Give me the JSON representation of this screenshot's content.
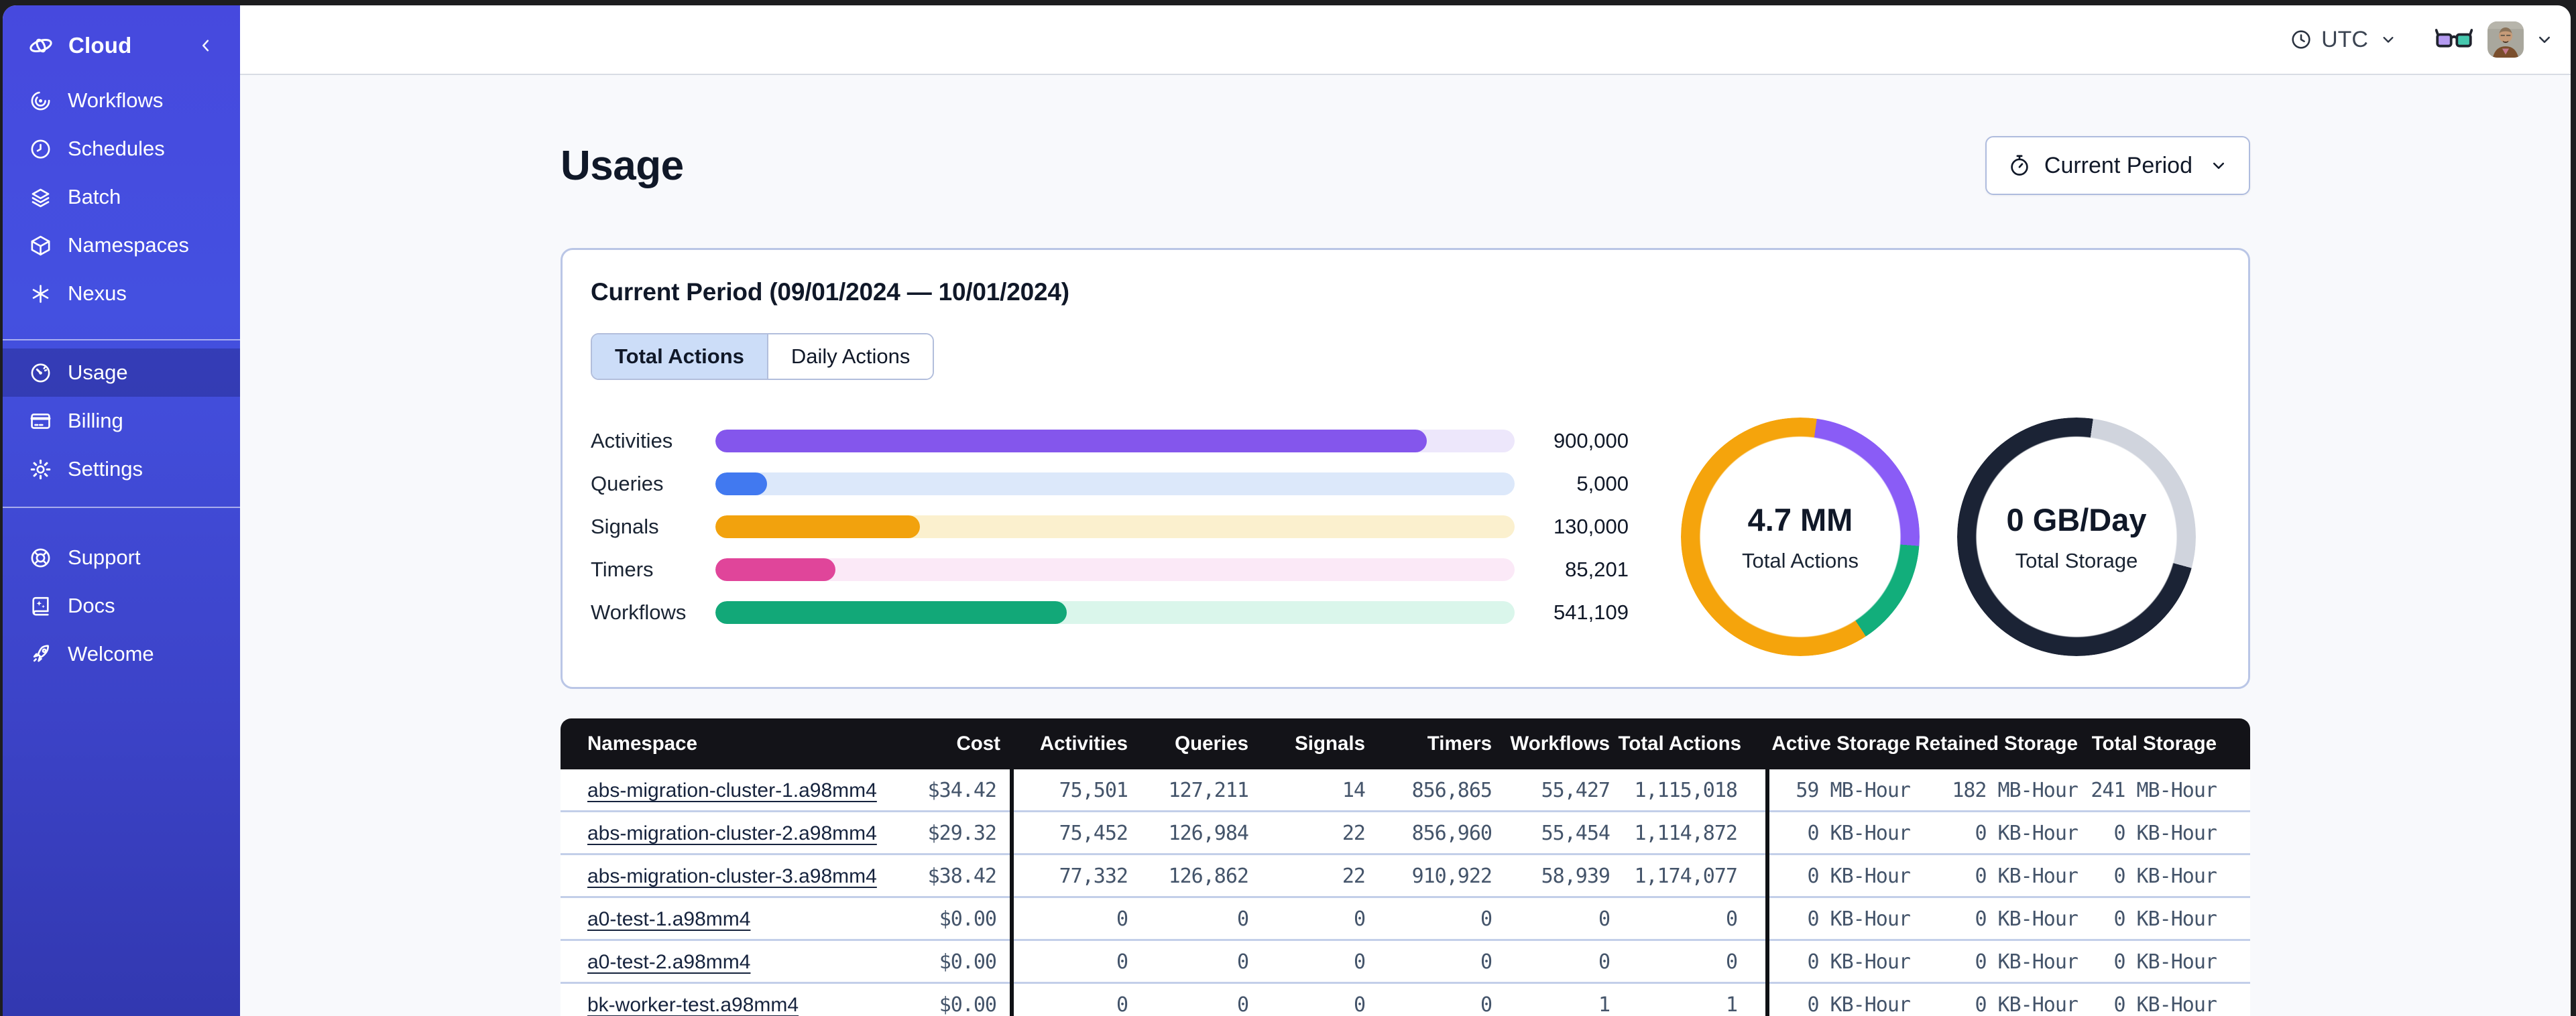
{
  "topbar": {
    "timezone": {
      "icon": "clock",
      "label": "UTC",
      "chevron_icon": "chevron-down"
    },
    "glasses_icon": "glasses",
    "avatar": "user-avatar-photo",
    "menu_chevron_icon": "chevron-down"
  },
  "sidebar": {
    "brand": {
      "icon": "temporal-logo",
      "label": "Cloud",
      "collapse_icon": "chevron-left"
    },
    "nav_main": [
      {
        "icon": "workflows",
        "label": "Workflows"
      },
      {
        "icon": "schedules",
        "label": "Schedules"
      },
      {
        "icon": "batch",
        "label": "Batch"
      },
      {
        "icon": "namespaces",
        "label": "Namespaces"
      },
      {
        "icon": "nexus",
        "label": "Nexus"
      }
    ],
    "nav_account": [
      {
        "icon": "usage",
        "label": "Usage",
        "active": true
      },
      {
        "icon": "billing",
        "label": "Billing"
      },
      {
        "icon": "settings",
        "label": "Settings"
      }
    ],
    "nav_help": [
      {
        "icon": "support",
        "label": "Support"
      },
      {
        "icon": "docs",
        "label": "Docs"
      },
      {
        "icon": "welcome",
        "label": "Welcome"
      }
    ]
  },
  "page": {
    "title": "Usage",
    "period_button": {
      "icon": "stopwatch",
      "label": "Current Period"
    }
  },
  "usage_card": {
    "title": "Current Period (09/01/2024 — 10/01/2024)",
    "tabs": [
      {
        "label": "Total Actions",
        "active": true
      },
      {
        "label": "Daily Actions",
        "active": false
      }
    ],
    "chart_data": [
      {
        "type": "bar",
        "orientation": "horizontal",
        "categories": [
          "Activities",
          "Queries",
          "Signals",
          "Timers",
          "Workflows"
        ],
        "values": [
          900000,
          5000,
          130000,
          85201,
          541109
        ],
        "rows": [
          {
            "label": "Activities",
            "value": 900000,
            "value_label": "900,000",
            "pct": 89,
            "color": "#8456EC",
            "track": "#EDE7FB"
          },
          {
            "label": "Queries",
            "value": 5000,
            "value_label": "5,000",
            "pct": 6.5,
            "color": "#4179F0",
            "track": "#DCE8FA"
          },
          {
            "label": "Signals",
            "value": 130000,
            "value_label": "130,000",
            "pct": 25.6,
            "color": "#F2A20D",
            "track": "#FBF0CE"
          },
          {
            "label": "Timers",
            "value": 85201,
            "value_label": "85,201",
            "pct": 15,
            "color": "#E0459A",
            "track": "#FBE9F7"
          },
          {
            "label": "Workflows",
            "value": 541109,
            "value_label": "541,109",
            "pct": 44,
            "color": "#12A878",
            "track": "#DAF6EB"
          }
        ]
      },
      {
        "type": "pie",
        "style": "donut",
        "center_value": "4.7 MM",
        "center_label": "Total Actions",
        "start_deg": 8,
        "segments": [
          {
            "name": "activities",
            "color": "#8A5CF6",
            "pct": 24
          },
          {
            "name": "workflows",
            "color": "#12AE7B",
            "pct": 14.5
          },
          {
            "name": "other",
            "color": "#F5A40C",
            "pct": 61.5
          }
        ]
      },
      {
        "type": "pie",
        "style": "donut",
        "center_value": "0 GB/Day",
        "center_label": "Total Storage",
        "start_deg": 8,
        "segments": [
          {
            "name": "remaining",
            "color": "#D0D4DD",
            "pct": 27
          },
          {
            "name": "used",
            "color": "#1B2335",
            "pct": 73
          }
        ]
      }
    ]
  },
  "table": {
    "columns": [
      "Namespace",
      "Cost",
      "Activities",
      "Queries",
      "Signals",
      "Timers",
      "Workflows",
      "Total Actions",
      "Active Storage",
      "Retained Storage",
      "Total Storage"
    ],
    "rows": [
      {
        "namespace": "abs-migration-cluster-1.a98mm4",
        "cost": "$34.42",
        "activities": "75,501",
        "queries": "127,211",
        "signals": "14",
        "timers": "856,865",
        "workflows": "55,427",
        "total_actions": "1,115,018",
        "active_storage": "59 MB-Hour",
        "retained_storage": "182 MB-Hour",
        "total_storage": "241 MB-Hour"
      },
      {
        "namespace": "abs-migration-cluster-2.a98mm4",
        "cost": "$29.32",
        "activities": "75,452",
        "queries": "126,984",
        "signals": "22",
        "timers": "856,960",
        "workflows": "55,454",
        "total_actions": "1,114,872",
        "active_storage": "0 KB-Hour",
        "retained_storage": "0 KB-Hour",
        "total_storage": "0 KB-Hour"
      },
      {
        "namespace": "abs-migration-cluster-3.a98mm4",
        "cost": "$38.42",
        "activities": "77,332",
        "queries": "126,862",
        "signals": "22",
        "timers": "910,922",
        "workflows": "58,939",
        "total_actions": "1,174,077",
        "active_storage": "0 KB-Hour",
        "retained_storage": "0 KB-Hour",
        "total_storage": "0 KB-Hour"
      },
      {
        "namespace": "a0-test-1.a98mm4",
        "cost": "$0.00",
        "activities": "0",
        "queries": "0",
        "signals": "0",
        "timers": "0",
        "workflows": "0",
        "total_actions": "0",
        "active_storage": "0 KB-Hour",
        "retained_storage": "0 KB-Hour",
        "total_storage": "0 KB-Hour"
      },
      {
        "namespace": "a0-test-2.a98mm4",
        "cost": "$0.00",
        "activities": "0",
        "queries": "0",
        "signals": "0",
        "timers": "0",
        "workflows": "0",
        "total_actions": "0",
        "active_storage": "0 KB-Hour",
        "retained_storage": "0 KB-Hour",
        "total_storage": "0 KB-Hour"
      },
      {
        "namespace": "bk-worker-test.a98mm4",
        "cost": "$0.00",
        "activities": "0",
        "queries": "0",
        "signals": "0",
        "timers": "0",
        "workflows": "1",
        "total_actions": "1",
        "active_storage": "0 KB-Hour",
        "retained_storage": "0 KB-Hour",
        "total_storage": "0 KB-Hour"
      }
    ]
  }
}
